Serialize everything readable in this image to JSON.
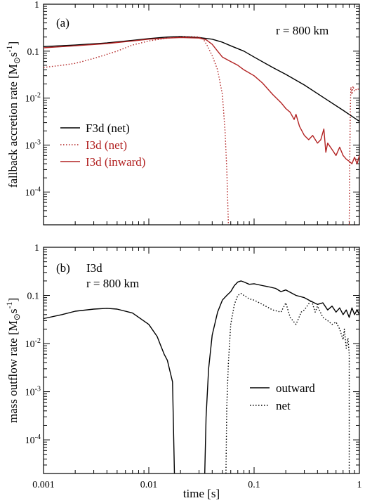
{
  "colors": {
    "black": "#000000",
    "red": "#b22222"
  },
  "xlabel": "time [s]",
  "chart_data": [
    {
      "type": "line",
      "panel_label": "(a)",
      "annotation": "r = 800 km",
      "ylabel": "fallback accretion rate [M⊙s⁻¹]",
      "ylabel_main": "fallback accretion rate [M",
      "ylabel_sub": "⊙",
      "ylabel_s": "s",
      "ylabel_sup": "-1",
      "ylabel_close": "]",
      "xscale": "log",
      "yscale": "log",
      "xlim": [
        0.001,
        1
      ],
      "ylim": [
        2e-05,
        1
      ],
      "legend_position": "left",
      "x_ticks": [
        "0.001",
        "0.01",
        "0.1",
        "1"
      ],
      "y_ticks": [
        {
          "base": "10",
          "exp": "-4",
          "value": 0.0001
        },
        {
          "base": "10",
          "exp": "-3",
          "value": 0.001
        },
        {
          "base": "10",
          "exp": "-2",
          "value": 0.01
        },
        {
          "base": "0.1",
          "exp": "",
          "value": 0.1
        },
        {
          "base": "1",
          "exp": "",
          "value": 1
        }
      ],
      "series": [
        {
          "name": "F3d (net)",
          "style": "solid",
          "color": "#000000",
          "points": [
            [
              0.001,
              0.125
            ],
            [
              0.002,
              0.135
            ],
            [
              0.004,
              0.15
            ],
            [
              0.007,
              0.17
            ],
            [
              0.01,
              0.185
            ],
            [
              0.015,
              0.2
            ],
            [
              0.02,
              0.205
            ],
            [
              0.03,
              0.195
            ],
            [
              0.04,
              0.18
            ],
            [
              0.05,
              0.155
            ],
            [
              0.06,
              0.13
            ],
            [
              0.08,
              0.1
            ],
            [
              0.1,
              0.075
            ],
            [
              0.15,
              0.045
            ],
            [
              0.2,
              0.032
            ],
            [
              0.3,
              0.019
            ],
            [
              0.5,
              0.009
            ],
            [
              0.7,
              0.0055
            ],
            [
              1.0,
              0.0032
            ]
          ]
        },
        {
          "name": "I3d (net)",
          "style": "dotted",
          "color": "#b22222",
          "points": [
            [
              0.001,
              0.045
            ],
            [
              0.0015,
              0.05
            ],
            [
              0.002,
              0.055
            ],
            [
              0.003,
              0.07
            ],
            [
              0.005,
              0.1
            ],
            [
              0.007,
              0.135
            ],
            [
              0.01,
              0.165
            ],
            [
              0.015,
              0.19
            ],
            [
              0.02,
              0.2
            ],
            [
              0.025,
              0.205
            ],
            [
              0.03,
              0.2
            ],
            [
              0.033,
              0.18
            ],
            [
              0.036,
              0.13
            ],
            [
              0.04,
              0.08
            ],
            [
              0.045,
              0.04
            ],
            [
              0.05,
              0.012
            ],
            [
              0.053,
              0.002
            ],
            [
              0.055,
              0.0003
            ],
            [
              0.057,
              2e-05
            ]
          ]
        },
        {
          "name": "I3d (inward)",
          "style": "solid",
          "color": "#b22222",
          "points": [
            [
              0.001,
              0.118
            ],
            [
              0.002,
              0.13
            ],
            [
              0.004,
              0.145
            ],
            [
              0.007,
              0.165
            ],
            [
              0.01,
              0.18
            ],
            [
              0.015,
              0.19
            ],
            [
              0.02,
              0.195
            ],
            [
              0.03,
              0.19
            ],
            [
              0.035,
              0.175
            ],
            [
              0.04,
              0.14
            ],
            [
              0.045,
              0.1
            ],
            [
              0.05,
              0.075
            ],
            [
              0.06,
              0.06
            ],
            [
              0.07,
              0.05
            ],
            [
              0.08,
              0.04
            ],
            [
              0.1,
              0.03
            ],
            [
              0.12,
              0.021
            ],
            [
              0.15,
              0.012
            ],
            [
              0.18,
              0.008
            ],
            [
              0.2,
              0.006
            ],
            [
              0.22,
              0.005
            ],
            [
              0.24,
              0.0035
            ],
            [
              0.25,
              0.0045
            ],
            [
              0.27,
              0.0025
            ],
            [
              0.3,
              0.0016
            ],
            [
              0.33,
              0.0013
            ],
            [
              0.36,
              0.0016
            ],
            [
              0.4,
              0.0011
            ],
            [
              0.43,
              0.0013
            ],
            [
              0.46,
              0.0022
            ],
            [
              0.48,
              0.0007
            ],
            [
              0.5,
              0.0011
            ],
            [
              0.55,
              0.0008
            ],
            [
              0.6,
              0.0006
            ],
            [
              0.65,
              0.0009
            ],
            [
              0.7,
              0.0006
            ],
            [
              0.75,
              0.0005
            ],
            [
              0.8,
              0.00045
            ],
            [
              0.85,
              0.0004
            ],
            [
              0.9,
              0.00055
            ],
            [
              0.95,
              0.0004
            ],
            [
              1.0,
              0.0006
            ]
          ]
        },
        {
          "name": "",
          "style": "dotted",
          "color": "#b22222",
          "legend": false,
          "points": [
            [
              0.8,
              2e-05
            ],
            [
              0.81,
              0.0005
            ],
            [
              0.82,
              0.006
            ],
            [
              0.83,
              0.017
            ],
            [
              0.85,
              0.012
            ],
            [
              0.87,
              0.018
            ],
            [
              0.9,
              0.014
            ],
            [
              0.95,
              0.016
            ],
            [
              1.0,
              0.015
            ]
          ]
        }
      ]
    },
    {
      "type": "line",
      "panel_label": "(b)",
      "annotation_line1": "I3d",
      "annotation_line2": "r = 800 km",
      "ylabel_main": "mass outflow rate [M",
      "ylabel_sub": "⊙",
      "ylabel_s": "s",
      "ylabel_sup": "-1",
      "ylabel_close": "]",
      "xscale": "log",
      "yscale": "log",
      "xlim": [
        0.001,
        1
      ],
      "ylim": [
        2e-05,
        1
      ],
      "legend_position": "lower-right",
      "x_ticks": [
        "0.001",
        "0.01",
        "0.1",
        "1"
      ],
      "y_ticks": [
        {
          "base": "10",
          "exp": "-4",
          "value": 0.0001
        },
        {
          "base": "10",
          "exp": "-3",
          "value": 0.001
        },
        {
          "base": "10",
          "exp": "-2",
          "value": 0.01
        },
        {
          "base": "0.1",
          "exp": "",
          "value": 0.1
        },
        {
          "base": "1",
          "exp": "",
          "value": 1
        }
      ],
      "series": [
        {
          "name": "outward",
          "style": "solid",
          "color": "#000000",
          "points": [
            [
              0.001,
              0.033
            ],
            [
              0.0015,
              0.04
            ],
            [
              0.002,
              0.047
            ],
            [
              0.003,
              0.052
            ],
            [
              0.004,
              0.054
            ],
            [
              0.005,
              0.052
            ],
            [
              0.007,
              0.043
            ],
            [
              0.01,
              0.025
            ],
            [
              0.012,
              0.014
            ],
            [
              0.013,
              0.009
            ],
            [
              0.014,
              0.006
            ],
            [
              0.015,
              0.0045
            ],
            [
              0.016,
              0.0025
            ],
            [
              0.0168,
              0.0016
            ],
            [
              0.0175,
              2e-05
            ]
          ]
        },
        {
          "name": "",
          "style": "solid",
          "color": "#000000",
          "legend": false,
          "points": [
            [
              0.034,
              2e-05
            ],
            [
              0.035,
              0.0003
            ],
            [
              0.037,
              0.003
            ],
            [
              0.04,
              0.015
            ],
            [
              0.045,
              0.045
            ],
            [
              0.05,
              0.08
            ],
            [
              0.055,
              0.1
            ],
            [
              0.06,
              0.12
            ],
            [
              0.065,
              0.16
            ],
            [
              0.07,
              0.19
            ],
            [
              0.075,
              0.2
            ],
            [
              0.08,
              0.19
            ],
            [
              0.09,
              0.17
            ],
            [
              0.1,
              0.175
            ],
            [
              0.12,
              0.16
            ],
            [
              0.14,
              0.15
            ],
            [
              0.16,
              0.14
            ],
            [
              0.18,
              0.12
            ],
            [
              0.2,
              0.13
            ],
            [
              0.25,
              0.1
            ],
            [
              0.3,
              0.09
            ],
            [
              0.35,
              0.075
            ],
            [
              0.4,
              0.065
            ],
            [
              0.45,
              0.07
            ],
            [
              0.5,
              0.05
            ],
            [
              0.55,
              0.06
            ],
            [
              0.6,
              0.045
            ],
            [
              0.65,
              0.055
            ],
            [
              0.7,
              0.04
            ],
            [
              0.75,
              0.05
            ],
            [
              0.8,
              0.035
            ],
            [
              0.85,
              0.055
            ],
            [
              0.9,
              0.04
            ],
            [
              0.95,
              0.05
            ],
            [
              1.0,
              0.04
            ]
          ]
        },
        {
          "name": "net",
          "style": "dotted",
          "color": "#000000",
          "points": [
            [
              0.054,
              2e-05
            ],
            [
              0.055,
              0.0005
            ],
            [
              0.057,
              0.004
            ],
            [
              0.06,
              0.025
            ],
            [
              0.065,
              0.065
            ],
            [
              0.07,
              0.1
            ],
            [
              0.075,
              0.11
            ],
            [
              0.08,
              0.1
            ],
            [
              0.09,
              0.085
            ],
            [
              0.1,
              0.08
            ],
            [
              0.12,
              0.065
            ],
            [
              0.15,
              0.05
            ],
            [
              0.18,
              0.045
            ],
            [
              0.2,
              0.07
            ],
            [
              0.22,
              0.035
            ],
            [
              0.25,
              0.025
            ],
            [
              0.28,
              0.045
            ],
            [
              0.3,
              0.05
            ],
            [
              0.35,
              0.08
            ],
            [
              0.38,
              0.045
            ],
            [
              0.4,
              0.06
            ],
            [
              0.45,
              0.035
            ],
            [
              0.5,
              0.03
            ],
            [
              0.55,
              0.025
            ],
            [
              0.6,
              0.028
            ],
            [
              0.65,
              0.02
            ],
            [
              0.7,
              0.012
            ],
            [
              0.72,
              0.02
            ],
            [
              0.75,
              0.008
            ],
            [
              0.78,
              0.013
            ],
            [
              0.8,
              0.006
            ],
            [
              0.8,
              2e-05
            ]
          ]
        }
      ]
    }
  ]
}
